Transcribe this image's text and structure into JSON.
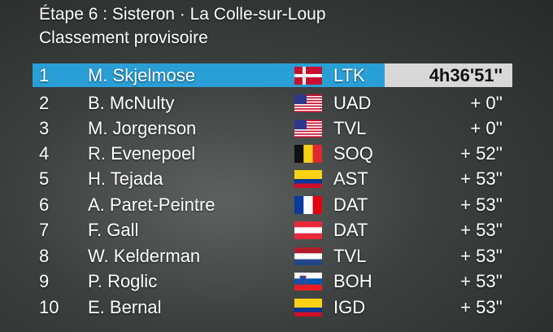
{
  "header": {
    "title": "Étape 6 : Sisteron · La Colle-sur-Loup",
    "subtitle": "Classement provisoire"
  },
  "table": {
    "rows": [
      [
        "1",
        "M. Skjelmose",
        "LTK",
        "4h36'51''"
      ],
      [
        "2",
        "B. McNulty",
        "UAD",
        "+ 0''"
      ],
      [
        "3",
        "M. Jorgenson",
        "TVL",
        "+ 0''"
      ],
      [
        "4",
        "R. Evenepoel",
        "SOQ",
        "+ 52''"
      ],
      [
        "5",
        "H. Tejada",
        "AST",
        "+ 53''"
      ],
      [
        "6",
        "A. Paret-Peintre",
        "DAT",
        "+ 53''"
      ],
      [
        "7",
        "F. Gall",
        "DAT",
        "+ 53''"
      ],
      [
        "8",
        "W. Kelderman",
        "TVL",
        "+ 53''"
      ],
      [
        "9",
        "P. Roglic",
        "BOH",
        "+ 53''"
      ],
      [
        "10",
        "E. Bernal",
        "IGD",
        "+ 53''"
      ]
    ]
  }
}
